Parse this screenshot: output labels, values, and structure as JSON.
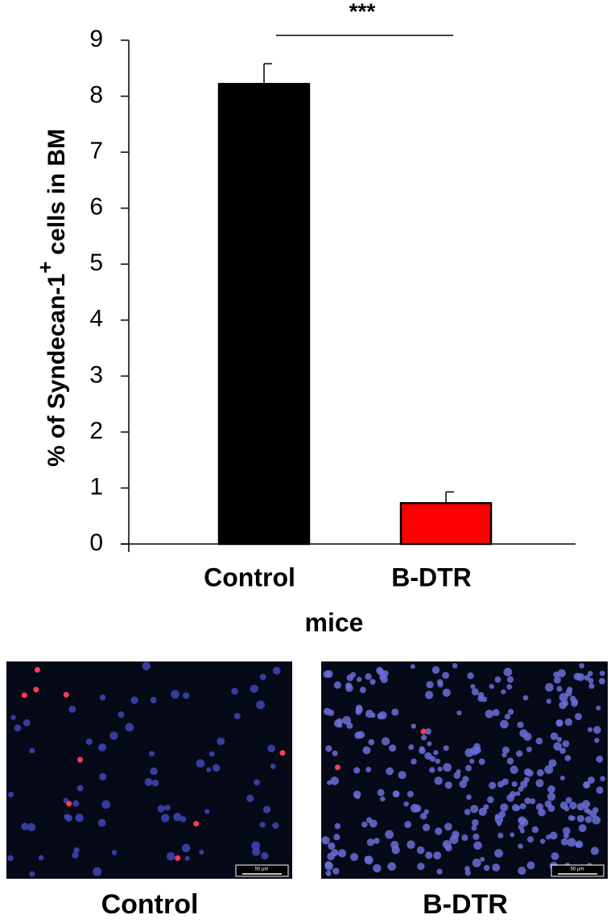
{
  "chart_data": {
    "type": "bar",
    "y_label": {
      "main": "% of Syndecan-1",
      "sup": "+",
      "rest": "cells in BM"
    },
    "x_label": "mice",
    "annotation": "***",
    "categories": [
      "Control",
      "B-DTR"
    ],
    "values": [
      8.22,
      0.73
    ],
    "errors": [
      0.36,
      0.2
    ],
    "colors": [
      "#000000",
      "#ff0000"
    ],
    "ylim": [
      0,
      9
    ],
    "yticks": [
      0,
      1,
      2,
      3,
      4,
      5,
      6,
      7,
      8,
      9
    ],
    "grid": false
  },
  "images": [
    {
      "caption": "Control",
      "scale_label": "50 µm"
    },
    {
      "caption": "B-DTR",
      "scale_label": "50 µm"
    }
  ]
}
